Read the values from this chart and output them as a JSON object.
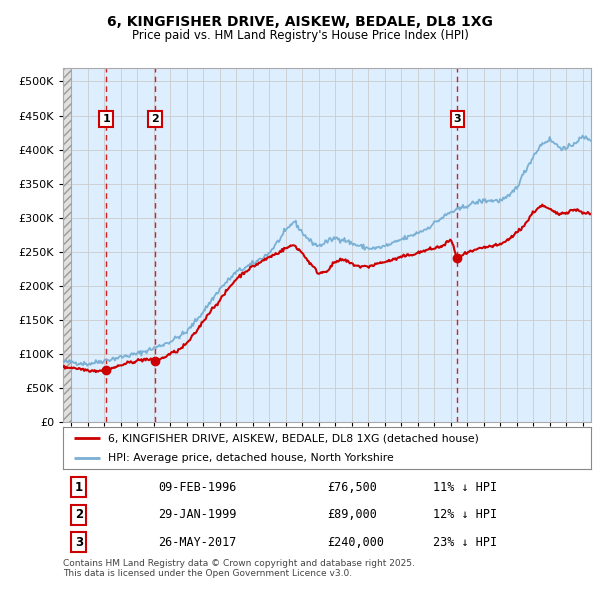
{
  "title": "6, KINGFISHER DRIVE, AISKEW, BEDALE, DL8 1XG",
  "subtitle": "Price paid vs. HM Land Registry's House Price Index (HPI)",
  "ylim": [
    0,
    520000
  ],
  "yticks": [
    0,
    50000,
    100000,
    150000,
    200000,
    250000,
    300000,
    350000,
    400000,
    450000,
    500000
  ],
  "xlim": [
    1993.5,
    2025.5
  ],
  "grid_color": "#cccccc",
  "hpi_color": "#7ab0d4",
  "price_color": "#cc0000",
  "dashed_color": "#cc0000",
  "legend_label_price": "6, KINGFISHER DRIVE, AISKEW, BEDALE, DL8 1XG (detached house)",
  "legend_label_hpi": "HPI: Average price, detached house, North Yorkshire",
  "footer": "Contains HM Land Registry data © Crown copyright and database right 2025.\nThis data is licensed under the Open Government Licence v3.0.",
  "bg_color": "#ddeeff",
  "hatch_bg": "#e0e0e0",
  "hpi_anchors": [
    [
      1993.5,
      88000
    ],
    [
      1994.0,
      88000
    ],
    [
      1995.0,
      85000
    ],
    [
      1996.0,
      90000
    ],
    [
      1997.0,
      95000
    ],
    [
      1998.0,
      100000
    ],
    [
      1999.0,
      108000
    ],
    [
      2000.0,
      118000
    ],
    [
      2001.0,
      132000
    ],
    [
      2002.0,
      162000
    ],
    [
      2003.0,
      195000
    ],
    [
      2004.0,
      220000
    ],
    [
      2005.0,
      232000
    ],
    [
      2006.0,
      248000
    ],
    [
      2007.0,
      280000
    ],
    [
      2007.5,
      295000
    ],
    [
      2008.0,
      278000
    ],
    [
      2008.5,
      265000
    ],
    [
      2009.0,
      258000
    ],
    [
      2009.5,
      265000
    ],
    [
      2010.0,
      270000
    ],
    [
      2010.5,
      268000
    ],
    [
      2011.0,
      262000
    ],
    [
      2011.5,
      258000
    ],
    [
      2012.0,
      255000
    ],
    [
      2012.5,
      255000
    ],
    [
      2013.0,
      258000
    ],
    [
      2013.5,
      262000
    ],
    [
      2014.0,
      268000
    ],
    [
      2014.5,
      272000
    ],
    [
      2015.0,
      278000
    ],
    [
      2015.5,
      283000
    ],
    [
      2016.0,
      292000
    ],
    [
      2016.5,
      300000
    ],
    [
      2017.0,
      308000
    ],
    [
      2017.5,
      312000
    ],
    [
      2018.0,
      318000
    ],
    [
      2018.5,
      322000
    ],
    [
      2019.0,
      325000
    ],
    [
      2019.5,
      325000
    ],
    [
      2020.0,
      325000
    ],
    [
      2020.5,
      330000
    ],
    [
      2021.0,
      345000
    ],
    [
      2021.5,
      368000
    ],
    [
      2022.0,
      390000
    ],
    [
      2022.5,
      408000
    ],
    [
      2023.0,
      415000
    ],
    [
      2023.5,
      405000
    ],
    [
      2024.0,
      400000
    ],
    [
      2024.5,
      410000
    ],
    [
      2025.0,
      418000
    ],
    [
      2025.5,
      415000
    ]
  ],
  "price_anchors": [
    [
      1993.5,
      80000
    ],
    [
      1994.0,
      80000
    ],
    [
      1994.5,
      78000
    ],
    [
      1995.0,
      76000
    ],
    [
      1995.5,
      75000
    ],
    [
      1996.11,
      76500
    ],
    [
      1996.5,
      79000
    ],
    [
      1997.0,
      83000
    ],
    [
      1997.5,
      87000
    ],
    [
      1998.0,
      90000
    ],
    [
      1998.5,
      92000
    ],
    [
      1999.08,
      89000
    ],
    [
      1999.5,
      93000
    ],
    [
      2000.0,
      100000
    ],
    [
      2000.5,
      105000
    ],
    [
      2001.0,
      115000
    ],
    [
      2001.5,
      130000
    ],
    [
      2002.0,
      148000
    ],
    [
      2002.5,
      165000
    ],
    [
      2003.0,
      178000
    ],
    [
      2003.5,
      195000
    ],
    [
      2004.0,
      210000
    ],
    [
      2004.5,
      220000
    ],
    [
      2005.0,
      228000
    ],
    [
      2005.5,
      235000
    ],
    [
      2006.0,
      242000
    ],
    [
      2006.5,
      248000
    ],
    [
      2007.0,
      255000
    ],
    [
      2007.5,
      260000
    ],
    [
      2008.0,
      248000
    ],
    [
      2008.5,
      232000
    ],
    [
      2009.0,
      218000
    ],
    [
      2009.5,
      222000
    ],
    [
      2010.0,
      235000
    ],
    [
      2010.5,
      238000
    ],
    [
      2011.0,
      232000
    ],
    [
      2011.5,
      228000
    ],
    [
      2012.0,
      228000
    ],
    [
      2012.5,
      232000
    ],
    [
      2013.0,
      235000
    ],
    [
      2013.5,
      238000
    ],
    [
      2014.0,
      242000
    ],
    [
      2014.5,
      245000
    ],
    [
      2015.0,
      248000
    ],
    [
      2015.5,
      252000
    ],
    [
      2016.0,
      255000
    ],
    [
      2016.5,
      258000
    ],
    [
      2017.0,
      268000
    ],
    [
      2017.4,
      240000
    ],
    [
      2017.5,
      242000
    ],
    [
      2018.0,
      248000
    ],
    [
      2018.5,
      252000
    ],
    [
      2019.0,
      256000
    ],
    [
      2019.5,
      258000
    ],
    [
      2020.0,
      260000
    ],
    [
      2020.5,
      268000
    ],
    [
      2021.0,
      278000
    ],
    [
      2021.5,
      290000
    ],
    [
      2022.0,
      308000
    ],
    [
      2022.5,
      318000
    ],
    [
      2023.0,
      312000
    ],
    [
      2023.5,
      305000
    ],
    [
      2024.0,
      308000
    ],
    [
      2024.5,
      312000
    ],
    [
      2025.0,
      308000
    ],
    [
      2025.5,
      305000
    ]
  ],
  "sale_years": [
    1996.11,
    1999.08,
    2017.4
  ],
  "sale_prices": [
    76500,
    89000,
    240000
  ],
  "sale_labels": [
    "1",
    "2",
    "3"
  ],
  "table_data": [
    [
      "1",
      "09-FEB-1996",
      "£76,500",
      "11% ↓ HPI"
    ],
    [
      "2",
      "29-JAN-1999",
      "£89,000",
      "12% ↓ HPI"
    ],
    [
      "3",
      "26-MAY-2017",
      "£240,000",
      "23% ↓ HPI"
    ]
  ]
}
